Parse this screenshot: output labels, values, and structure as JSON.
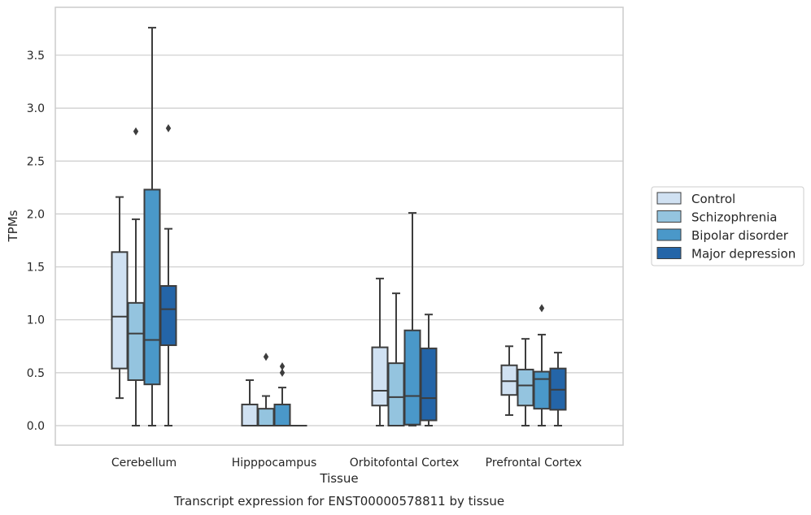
{
  "chart_data": {
    "type": "box",
    "title": "",
    "caption": "Transcript expression for ENST00000578811 by tissue",
    "xlabel": "Tissue",
    "ylabel": "TPMs",
    "ylim": [
      -0.18,
      3.95
    ],
    "yticks": [
      "0.0",
      "0.5",
      "1.0",
      "1.5",
      "2.0",
      "2.5",
      "3.0",
      "3.5"
    ],
    "grid": "horizontal",
    "legend_position": "right",
    "categories": [
      "Cerebellum",
      "Hipppocampus",
      "Orbitofontal Cortex",
      "Prefrontal Cortex"
    ],
    "series": [
      {
        "name": "Control",
        "color": "#d0e1f2",
        "boxes": [
          {
            "whislo": 0.26,
            "q1": 0.54,
            "med": 1.03,
            "q3": 1.64,
            "whishi": 2.16,
            "fliers": []
          },
          {
            "whislo": 0.0,
            "q1": 0.0,
            "med": 0.0,
            "q3": 0.2,
            "whishi": 0.43,
            "fliers": []
          },
          {
            "whislo": 0.0,
            "q1": 0.19,
            "med": 0.33,
            "q3": 0.74,
            "whishi": 1.39,
            "fliers": []
          },
          {
            "whislo": 0.1,
            "q1": 0.29,
            "med": 0.42,
            "q3": 0.57,
            "whishi": 0.75,
            "fliers": []
          }
        ]
      },
      {
        "name": "Schizophrenia",
        "color": "#94c4df",
        "boxes": [
          {
            "whislo": 0.0,
            "q1": 0.43,
            "med": 0.87,
            "q3": 1.16,
            "whishi": 1.95,
            "fliers": [
              2.78
            ]
          },
          {
            "whislo": 0.0,
            "q1": 0.0,
            "med": 0.0,
            "q3": 0.16,
            "whishi": 0.28,
            "fliers": [
              0.65
            ]
          },
          {
            "whislo": 0.0,
            "q1": 0.0,
            "med": 0.27,
            "q3": 0.59,
            "whishi": 1.25,
            "fliers": []
          },
          {
            "whislo": 0.0,
            "q1": 0.19,
            "med": 0.38,
            "q3": 0.53,
            "whishi": 0.82,
            "fliers": []
          }
        ]
      },
      {
        "name": "Bipolar disorder",
        "color": "#4a98c9",
        "boxes": [
          {
            "whislo": 0.0,
            "q1": 0.39,
            "med": 0.81,
            "q3": 2.23,
            "whishi": 3.76,
            "fliers": []
          },
          {
            "whislo": 0.0,
            "q1": 0.0,
            "med": 0.0,
            "q3": 0.2,
            "whishi": 0.36,
            "fliers": [
              0.5,
              0.56
            ]
          },
          {
            "whislo": 0.0,
            "q1": 0.01,
            "med": 0.28,
            "q3": 0.9,
            "whishi": 2.01,
            "fliers": []
          },
          {
            "whislo": 0.0,
            "q1": 0.16,
            "med": 0.44,
            "q3": 0.51,
            "whishi": 0.86,
            "fliers": [
              1.11
            ]
          }
        ]
      },
      {
        "name": "Major depression",
        "color": "#2465a8",
        "boxes": [
          {
            "whislo": 0.0,
            "q1": 0.76,
            "med": 1.1,
            "q3": 1.32,
            "whishi": 1.86,
            "fliers": [
              2.81
            ]
          },
          {
            "whislo": 0.0,
            "q1": 0.0,
            "med": 0.0,
            "q3": 0.0,
            "whishi": 0.0,
            "fliers": []
          },
          {
            "whislo": 0.0,
            "q1": 0.05,
            "med": 0.26,
            "q3": 0.73,
            "whishi": 1.05,
            "fliers": []
          },
          {
            "whislo": 0.0,
            "q1": 0.15,
            "med": 0.34,
            "q3": 0.54,
            "whishi": 0.69,
            "fliers": []
          }
        ]
      }
    ]
  }
}
